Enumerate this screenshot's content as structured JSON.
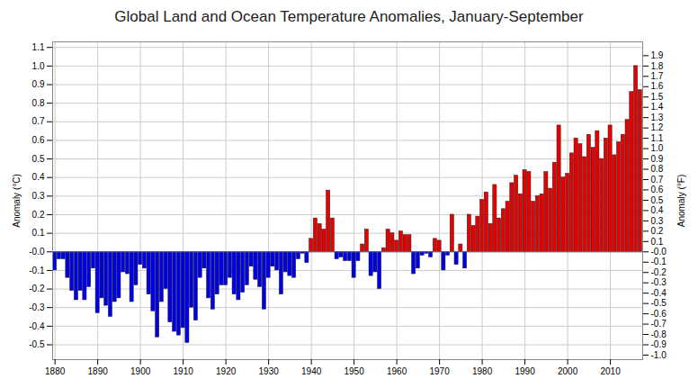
{
  "chart_data": {
    "type": "bar",
    "title": "Global Land and Ocean Temperature Anomalies, January-September",
    "ylabel": "Anomaly (°C)",
    "y2label": "Anomaly (°F)",
    "x": [
      1880,
      1881,
      1882,
      1883,
      1884,
      1885,
      1886,
      1887,
      1888,
      1889,
      1890,
      1891,
      1892,
      1893,
      1894,
      1895,
      1896,
      1897,
      1898,
      1899,
      1900,
      1901,
      1902,
      1903,
      1904,
      1905,
      1906,
      1907,
      1908,
      1909,
      1910,
      1911,
      1912,
      1913,
      1914,
      1915,
      1916,
      1917,
      1918,
      1919,
      1920,
      1921,
      1922,
      1923,
      1924,
      1925,
      1926,
      1927,
      1928,
      1929,
      1930,
      1931,
      1932,
      1933,
      1934,
      1935,
      1936,
      1937,
      1938,
      1939,
      1940,
      1941,
      1942,
      1943,
      1944,
      1945,
      1946,
      1947,
      1948,
      1949,
      1950,
      1951,
      1952,
      1953,
      1954,
      1955,
      1956,
      1957,
      1958,
      1959,
      1960,
      1961,
      1962,
      1963,
      1964,
      1965,
      1966,
      1967,
      1968,
      1969,
      1970,
      1971,
      1972,
      1973,
      1974,
      1975,
      1976,
      1977,
      1978,
      1979,
      1980,
      1981,
      1982,
      1983,
      1984,
      1985,
      1986,
      1987,
      1988,
      1989,
      1990,
      1991,
      1992,
      1993,
      1994,
      1995,
      1996,
      1997,
      1998,
      1999,
      2000,
      2001,
      2002,
      2003,
      2004,
      2005,
      2006,
      2007,
      2008,
      2009,
      2010,
      2011,
      2012,
      2013,
      2014,
      2015,
      2016,
      2017
    ],
    "values": [
      -0.1,
      -0.04,
      -0.04,
      -0.14,
      -0.21,
      -0.26,
      -0.21,
      -0.26,
      -0.19,
      -0.09,
      -0.33,
      -0.25,
      -0.29,
      -0.35,
      -0.27,
      -0.25,
      -0.11,
      -0.12,
      -0.27,
      -0.18,
      -0.07,
      -0.09,
      -0.23,
      -0.32,
      -0.46,
      -0.27,
      -0.2,
      -0.38,
      -0.43,
      -0.45,
      -0.41,
      -0.49,
      -0.3,
      -0.37,
      -0.14,
      -0.09,
      -0.25,
      -0.31,
      -0.23,
      -0.18,
      -0.18,
      -0.14,
      -0.23,
      -0.26,
      -0.22,
      -0.18,
      -0.08,
      -0.15,
      -0.19,
      -0.31,
      -0.14,
      -0.08,
      -0.1,
      -0.23,
      -0.11,
      -0.13,
      -0.14,
      -0.04,
      -0.01,
      -0.06,
      0.07,
      0.18,
      0.15,
      0.12,
      0.33,
      0.18,
      -0.04,
      -0.03,
      -0.05,
      -0.05,
      -0.14,
      -0.05,
      0.04,
      0.12,
      -0.13,
      -0.11,
      -0.2,
      0.02,
      0.12,
      0.1,
      0.06,
      0.11,
      0.09,
      0.09,
      -0.12,
      -0.09,
      -0.02,
      -0.01,
      -0.03,
      0.07,
      0.06,
      -0.1,
      -0.02,
      0.2,
      -0.07,
      0.04,
      -0.09,
      0.2,
      0.14,
      0.19,
      0.28,
      0.32,
      0.15,
      0.36,
      0.18,
      0.23,
      0.27,
      0.37,
      0.41,
      0.31,
      0.44,
      0.43,
      0.27,
      0.3,
      0.31,
      0.43,
      0.34,
      0.48,
      0.68,
      0.4,
      0.42,
      0.53,
      0.61,
      0.58,
      0.51,
      0.63,
      0.56,
      0.65,
      0.5,
      0.61,
      0.68,
      0.52,
      0.59,
      0.63,
      0.71,
      0.86,
      1.0,
      0.87
    ],
    "colors": [
      "#0000e6",
      "#0000e6",
      "#0000e6",
      "#0000e6",
      "#0000e6",
      "#0000e6",
      "#0000e6",
      "#0000e6",
      "#0000e6",
      "#0000e6",
      "#0000e6",
      "#0000e6",
      "#0000e6",
      "#0000e6",
      "#0000e6",
      "#0000e6",
      "#0000e6",
      "#0000e6",
      "#0000e6",
      "#0000e6",
      "#0000e6",
      "#0000e6",
      "#0000e6",
      "#0000e6",
      "#0000e6",
      "#0000e6",
      "#0000e6",
      "#0000e6",
      "#0000e6",
      "#0000e6",
      "#0000e6",
      "#0000e6",
      "#0000e6",
      "#0000e6",
      "#0000e6",
      "#0000e6",
      "#0000e6",
      "#0000e6",
      "#0000e6",
      "#0000e6",
      "#0000e6",
      "#0000e6",
      "#0000e6",
      "#0000e6",
      "#0000e6",
      "#0000e6",
      "#0000e6",
      "#0000e6",
      "#0000e6",
      "#0000e6",
      "#0000e6",
      "#0000e6",
      "#0000e6",
      "#0000e6",
      "#0000e6",
      "#0000e6",
      "#0000e6",
      "#0000e6",
      "#0000e6",
      "#0000e6",
      "#e60000",
      "#e60000",
      "#e60000",
      "#e60000",
      "#e60000",
      "#e60000",
      "#0000e6",
      "#0000e6",
      "#0000e6",
      "#0000e6",
      "#0000e6",
      "#0000e6",
      "#e60000",
      "#e60000",
      "#0000e6",
      "#0000e6",
      "#0000e6",
      "#e60000",
      "#e60000",
      "#e60000",
      "#e60000",
      "#e60000",
      "#e60000",
      "#e60000",
      "#0000e6",
      "#0000e6",
      "#0000e6",
      "#0000e6",
      "#0000e6",
      "#e60000",
      "#e60000",
      "#0000e6",
      "#0000e6",
      "#e60000",
      "#0000e6",
      "#e60000",
      "#0000e6",
      "#e60000",
      "#e60000",
      "#e60000",
      "#e60000",
      "#e60000",
      "#e60000",
      "#e60000",
      "#e60000",
      "#e60000",
      "#e60000",
      "#e60000",
      "#e60000",
      "#e60000",
      "#e60000",
      "#e60000",
      "#e60000",
      "#e60000",
      "#e60000",
      "#e60000",
      "#e60000",
      "#e60000",
      "#e60000",
      "#e60000",
      "#e60000",
      "#e60000",
      "#e60000",
      "#e60000",
      "#e60000",
      "#e60000",
      "#e60000",
      "#e60000",
      "#e60000",
      "#e60000",
      "#e60000",
      "#e60000",
      "#e60000",
      "#e60000",
      "#e60000",
      "#e60000",
      "#e60000",
      "#e60000"
    ],
    "xticks": [
      1880,
      1890,
      1900,
      1910,
      1920,
      1930,
      1940,
      1950,
      1960,
      1970,
      1980,
      1990,
      2000,
      2010
    ],
    "ylim": [
      -0.58,
      1.13
    ],
    "yticks": [
      -0.5,
      -0.4,
      -0.3,
      -0.2,
      -0.1,
      {
        "value": 0,
        "label": "-0.0"
      },
      0.1,
      0.2,
      0.3,
      0.4,
      0.5,
      0.6,
      0.7,
      0.8,
      0.9,
      {
        "value": 1,
        "label": "1.0"
      },
      1.1
    ],
    "y2lim": [
      -1.044,
      2.034
    ],
    "y2ticks": [
      {
        "value": -1,
        "label": "-1.0"
      },
      -0.9,
      -0.8,
      -0.7,
      -0.6,
      -0.5,
      -0.4,
      -0.3,
      -0.2,
      -0.1,
      {
        "value": 0,
        "label": "-0.0"
      },
      0.1,
      0.2,
      0.3,
      0.4,
      0.5,
      0.6,
      0.7,
      0.8,
      0.9,
      {
        "value": 1,
        "label": "1.0"
      },
      1.1,
      1.2,
      1.3,
      1.4,
      1.5,
      1.6,
      1.7,
      1.8,
      1.9
    ],
    "grid": true
  }
}
